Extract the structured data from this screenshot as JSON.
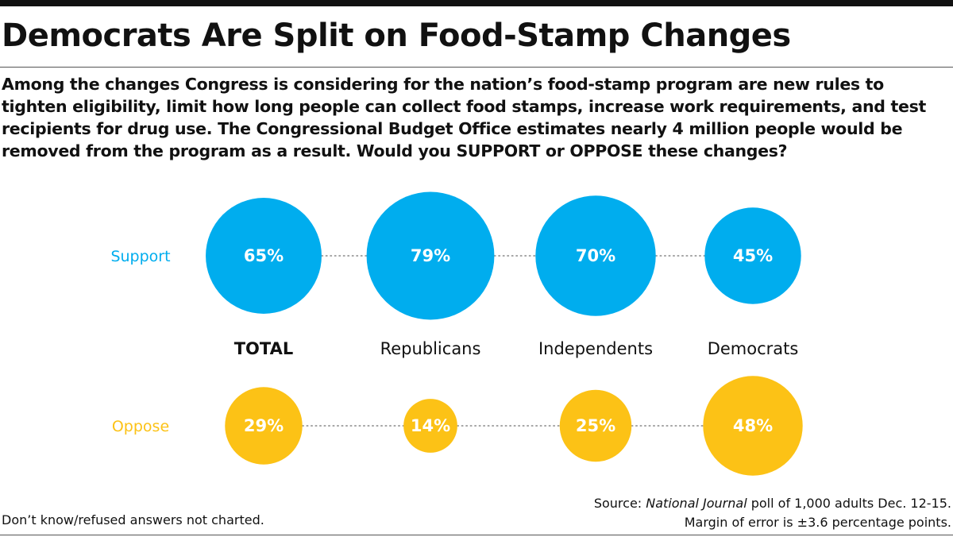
{
  "header": {
    "title": "Democrats Are Split on Food-Stamp Changes",
    "question_prefix": "Among the changes Congress is considering for the nation’s food-stamp program are new rules to tighten eligibility, limit how long people can collect food stamps, increase work requirements, and test recipients for drug use. The Congressional Budget Office estimates nearly 4 million people would be removed from the program as a result. Would you ",
    "question_support": "SUPPORT",
    "question_or": " or ",
    "question_oppose": "OPPOSE",
    "question_suffix": " these changes?"
  },
  "colors": {
    "support": "#00adee",
    "oppose": "#fcc216",
    "text": "#111111",
    "dots": "#888888"
  },
  "chart_data": {
    "type": "bubble",
    "categories": [
      "TOTAL",
      "Republicans",
      "Independents",
      "Democrats"
    ],
    "series": [
      {
        "name": "Support",
        "values": [
          65,
          79,
          70,
          45
        ],
        "labels": [
          "65%",
          "79%",
          "70%",
          "45%"
        ]
      },
      {
        "name": "Oppose",
        "values": [
          29,
          14,
          25,
          48
        ],
        "labels": [
          "29%",
          "14%",
          "25%",
          "48%"
        ]
      }
    ],
    "unit": "%"
  },
  "footer": {
    "note": "Don’t know/refused answers not charted.",
    "source_prefix": "Source: ",
    "source_name": "National Journal",
    "source_suffix": " poll of 1,000 adults Dec. 12-15.",
    "margin": "Margin of error is ±3.6 percentage points."
  }
}
